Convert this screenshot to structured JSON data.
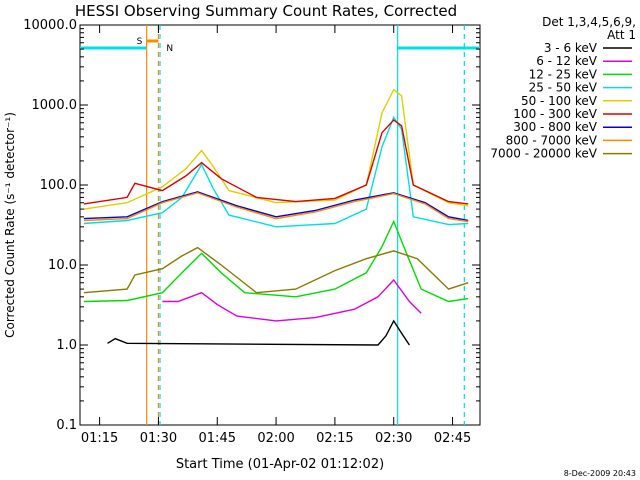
{
  "chart_data": {
    "type": "line",
    "title": "HESSI Observing Summary Count Rates, Corrected",
    "xlabel": "Start Time (01-Apr-02 01:12:02)",
    "ylabel": "Corrected Count Rate (s⁻¹ detector⁻¹)",
    "y_scale": "log",
    "ylim": [
      0.1,
      10000
    ],
    "xlim": [
      "01:10",
      "02:52"
    ],
    "x_ticks": [
      "01:15",
      "01:30",
      "01:45",
      "02:00",
      "02:15",
      "02:30",
      "02:45"
    ],
    "y_ticks": [
      "0.1",
      "1.0",
      "10.0",
      "100.0",
      "1000.0",
      "10000.0"
    ],
    "legend_header": [
      "Det 1,3,4,5,6,9,",
      "Att 1"
    ],
    "legend_position": "right",
    "series": [
      {
        "name": "3 - 6 keV",
        "color": "#000000",
        "points": [
          [
            "01:17",
            1.05
          ],
          [
            "01:19",
            1.2
          ],
          [
            "01:22",
            1.05
          ],
          [
            "02:26",
            1.0
          ],
          [
            "02:28",
            1.3
          ],
          [
            "02:30",
            2.0
          ],
          [
            "02:32",
            1.4
          ],
          [
            "02:34",
            1.0
          ]
        ]
      },
      {
        "name": "6 - 12 keV",
        "color": "#e000e0",
        "points": [
          [
            "01:31",
            3.5
          ],
          [
            "01:35",
            3.5
          ],
          [
            "01:41",
            4.5
          ],
          [
            "01:45",
            3.2
          ],
          [
            "01:50",
            2.3
          ],
          [
            "02:00",
            2.0
          ],
          [
            "02:10",
            2.2
          ],
          [
            "02:20",
            2.8
          ],
          [
            "02:26",
            4.0
          ],
          [
            "02:30",
            6.5
          ],
          [
            "02:34",
            3.5
          ],
          [
            "02:37",
            2.5
          ]
        ]
      },
      {
        "name": "12 - 25 keV",
        "color": "#00dd00",
        "points": [
          [
            "01:11",
            3.5
          ],
          [
            "01:22",
            3.6
          ],
          [
            "01:31",
            4.5
          ],
          [
            "01:36",
            8.0
          ],
          [
            "01:41",
            14.0
          ],
          [
            "01:46",
            8.0
          ],
          [
            "01:52",
            4.5
          ],
          [
            "02:05",
            4.0
          ],
          [
            "02:15",
            5.0
          ],
          [
            "02:23",
            8.0
          ],
          [
            "02:27",
            17.0
          ],
          [
            "02:30",
            35.0
          ],
          [
            "02:33",
            15.0
          ],
          [
            "02:37",
            5.0
          ],
          [
            "02:44",
            3.5
          ],
          [
            "02:49",
            3.8
          ]
        ]
      },
      {
        "name": "25 - 50 keV",
        "color": "#00e0e0",
        "points": [
          [
            "01:11",
            33.0
          ],
          [
            "01:22",
            36.0
          ],
          [
            "01:31",
            45.0
          ],
          [
            "01:36",
            70.0
          ],
          [
            "01:41",
            180.0
          ],
          [
            "01:44",
            90.0
          ],
          [
            "01:48",
            42.0
          ],
          [
            "02:00",
            30.0
          ],
          [
            "02:15",
            33.0
          ],
          [
            "02:23",
            50.0
          ],
          [
            "02:27",
            300.0
          ],
          [
            "02:30",
            700.0
          ],
          [
            "02:32",
            500.0
          ],
          [
            "02:35",
            40.0
          ],
          [
            "02:44",
            32.0
          ],
          [
            "02:49",
            33.0
          ]
        ]
      },
      {
        "name": "50 - 100 keV",
        "color": "#e0d000",
        "points": [
          [
            "01:11",
            50.0
          ],
          [
            "01:22",
            60.0
          ],
          [
            "01:31",
            95.0
          ],
          [
            "01:37",
            160.0
          ],
          [
            "01:41",
            270.0
          ],
          [
            "01:44",
            170.0
          ],
          [
            "01:48",
            85.0
          ],
          [
            "02:00",
            60.0
          ],
          [
            "02:15",
            65.0
          ],
          [
            "02:23",
            100.0
          ],
          [
            "02:27",
            800.0
          ],
          [
            "02:30",
            1550.0
          ],
          [
            "02:32",
            1300.0
          ],
          [
            "02:35",
            100.0
          ],
          [
            "02:44",
            60.0
          ],
          [
            "02:49",
            55.0
          ]
        ]
      },
      {
        "name": "100 - 300 keV",
        "color": "#e00000",
        "points": [
          [
            "01:11",
            58.0
          ],
          [
            "01:22",
            70.0
          ],
          [
            "01:24",
            105.0
          ],
          [
            "01:31",
            85.0
          ],
          [
            "01:37",
            130.0
          ],
          [
            "01:41",
            190.0
          ],
          [
            "01:46",
            120.0
          ],
          [
            "01:55",
            70.0
          ],
          [
            "02:05",
            62.0
          ],
          [
            "02:15",
            68.0
          ],
          [
            "02:23",
            100.0
          ],
          [
            "02:27",
            450.0
          ],
          [
            "02:30",
            650.0
          ],
          [
            "02:32",
            550.0
          ],
          [
            "02:35",
            100.0
          ],
          [
            "02:44",
            62.0
          ],
          [
            "02:49",
            58.0
          ]
        ]
      },
      {
        "name": "300 - 800 keV",
        "color": "#0000e0",
        "points": [
          [
            "01:11",
            38.0
          ],
          [
            "01:22",
            40.0
          ],
          [
            "01:31",
            62.0
          ],
          [
            "01:40",
            82.0
          ],
          [
            "01:50",
            55.0
          ],
          [
            "02:00",
            40.0
          ],
          [
            "02:10",
            48.0
          ],
          [
            "02:20",
            65.0
          ],
          [
            "02:30",
            80.0
          ],
          [
            "02:38",
            60.0
          ],
          [
            "02:44",
            40.0
          ],
          [
            "02:49",
            36.0
          ]
        ]
      },
      {
        "name": "800 - 7000 keV",
        "color": "#ff8800",
        "points": [
          [
            "01:11",
            36.0
          ],
          [
            "01:22",
            38.0
          ],
          [
            "01:31",
            60.0
          ],
          [
            "01:40",
            80.0
          ],
          [
            "01:50",
            53.0
          ],
          [
            "02:00",
            38.0
          ],
          [
            "02:10",
            46.0
          ],
          [
            "02:20",
            62.0
          ],
          [
            "02:30",
            78.0
          ],
          [
            "02:38",
            58.0
          ],
          [
            "02:44",
            38.0
          ],
          [
            "02:49",
            35.0
          ]
        ]
      },
      {
        "name": "7000 - 20000 keV",
        "color": "#8b7a00",
        "points": [
          [
            "01:11",
            4.5
          ],
          [
            "01:22",
            5.0
          ],
          [
            "01:24",
            7.5
          ],
          [
            "01:31",
            9.0
          ],
          [
            "01:36",
            13.0
          ],
          [
            "01:40",
            16.5
          ],
          [
            "01:46",
            10.0
          ],
          [
            "01:55",
            4.5
          ],
          [
            "02:05",
            5.0
          ],
          [
            "02:15",
            8.5
          ],
          [
            "02:23",
            12.0
          ],
          [
            "02:30",
            15.0
          ],
          [
            "02:36",
            12.0
          ],
          [
            "02:44",
            5.0
          ],
          [
            "02:49",
            6.0
          ]
        ]
      }
    ],
    "markers": {
      "night_intervals": [
        [
          "01:10",
          "01:27"
        ],
        [
          "02:31",
          "02:52"
        ]
      ],
      "saa_interval": [
        "01:27",
        "01:30"
      ],
      "saa_label": "S",
      "night_label": "N",
      "vertical_lines": [
        {
          "time": "01:27",
          "color": "#ff8800",
          "style": "solid"
        },
        {
          "time": "01:30",
          "color": "#ff8800",
          "style": "dashed"
        },
        {
          "time": "01:30.4",
          "color": "#00e0e0",
          "style": "dashed"
        },
        {
          "time": "02:31",
          "color": "#00e0e0",
          "style": "solid"
        },
        {
          "time": "02:48",
          "color": "#00e0e0",
          "style": "dashed"
        }
      ]
    },
    "grid": false
  },
  "footer": {
    "timestamp": "8-Dec-2009 20:43"
  }
}
